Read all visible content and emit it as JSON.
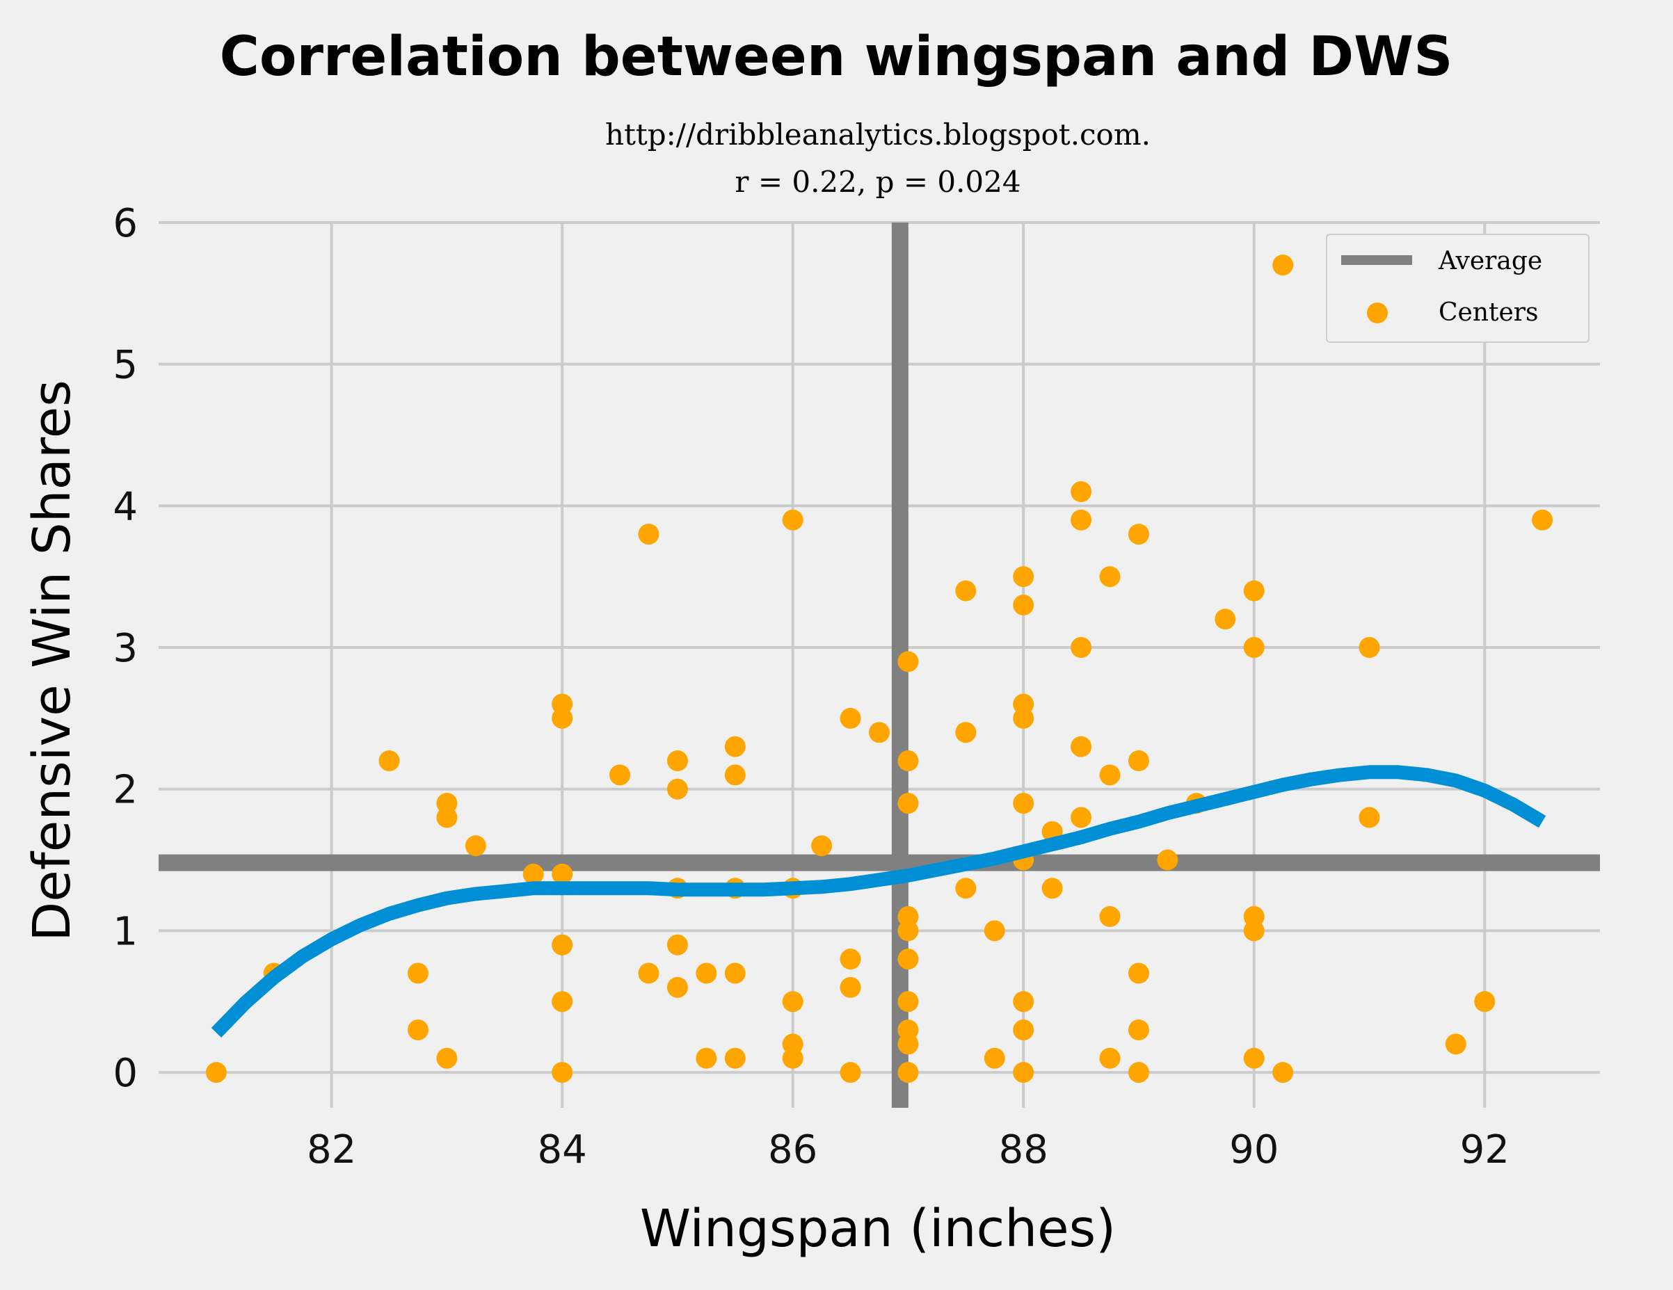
{
  "chart_data": {
    "type": "scatter",
    "title": "Correlation between wingspan and DWS",
    "subtitle_lines": [
      "http://dribbleanalytics.blogspot.com.",
      "r = 0.22, p = 0.024"
    ],
    "xlabel": "Wingspan (inches)",
    "ylabel": "Defensive Win Shares",
    "xlim": [
      80.5,
      93.0
    ],
    "ylim": [
      -0.25,
      6.0
    ],
    "xticks": [
      82,
      84,
      86,
      88,
      90,
      92
    ],
    "yticks": [
      0,
      1,
      2,
      3,
      4,
      5,
      6
    ],
    "grid": true,
    "legend": {
      "position": "top-right",
      "entries": [
        "Average",
        "Centers"
      ]
    },
    "colors": {
      "points": "#ffa500",
      "fit": "#008fd5",
      "average": "#808080",
      "grid": "#cbcbcb",
      "background": "#f0f0f0"
    },
    "average": {
      "x": 86.93,
      "y": 1.48,
      "name": "Average"
    },
    "series": [
      {
        "name": "Centers",
        "points": [
          [
            81.0,
            0.0
          ],
          [
            81.5,
            0.7
          ],
          [
            82.5,
            2.2
          ],
          [
            82.75,
            0.7
          ],
          [
            82.75,
            0.3
          ],
          [
            83.0,
            1.9
          ],
          [
            83.0,
            1.8
          ],
          [
            83.0,
            0.1
          ],
          [
            83.25,
            1.6
          ],
          [
            83.75,
            1.4
          ],
          [
            84.0,
            2.6
          ],
          [
            84.0,
            2.5
          ],
          [
            84.0,
            1.4
          ],
          [
            84.0,
            0.9
          ],
          [
            84.0,
            0.5
          ],
          [
            84.0,
            0.0
          ],
          [
            84.5,
            2.1
          ],
          [
            84.75,
            3.8
          ],
          [
            84.75,
            0.7
          ],
          [
            85.0,
            2.2
          ],
          [
            85.0,
            2.0
          ],
          [
            85.0,
            1.3
          ],
          [
            85.0,
            0.9
          ],
          [
            85.0,
            0.6
          ],
          [
            85.25,
            0.7
          ],
          [
            85.25,
            0.1
          ],
          [
            85.5,
            2.3
          ],
          [
            85.5,
            2.1
          ],
          [
            85.5,
            1.3
          ],
          [
            85.5,
            0.7
          ],
          [
            85.5,
            0.1
          ],
          [
            86.0,
            3.9
          ],
          [
            86.0,
            1.3
          ],
          [
            86.0,
            0.5
          ],
          [
            86.0,
            0.2
          ],
          [
            86.0,
            0.1
          ],
          [
            86.25,
            1.6
          ],
          [
            86.5,
            2.5
          ],
          [
            86.5,
            0.8
          ],
          [
            86.5,
            0.6
          ],
          [
            86.5,
            0.0
          ],
          [
            86.75,
            2.4
          ],
          [
            87.0,
            2.9
          ],
          [
            87.0,
            2.2
          ],
          [
            87.0,
            1.9
          ],
          [
            87.0,
            1.1
          ],
          [
            87.0,
            1.0
          ],
          [
            87.0,
            0.8
          ],
          [
            87.0,
            0.5
          ],
          [
            87.0,
            0.3
          ],
          [
            87.0,
            0.2
          ],
          [
            87.0,
            0.0
          ],
          [
            87.5,
            3.4
          ],
          [
            87.5,
            2.4
          ],
          [
            87.5,
            1.3
          ],
          [
            87.75,
            1.0
          ],
          [
            87.75,
            0.1
          ],
          [
            88.0,
            3.5
          ],
          [
            88.0,
            3.3
          ],
          [
            88.0,
            2.6
          ],
          [
            88.0,
            2.5
          ],
          [
            88.0,
            1.9
          ],
          [
            88.0,
            1.5
          ],
          [
            88.0,
            0.5
          ],
          [
            88.0,
            0.3
          ],
          [
            88.0,
            0.0
          ],
          [
            88.25,
            1.7
          ],
          [
            88.25,
            1.3
          ],
          [
            88.5,
            4.1
          ],
          [
            88.5,
            3.9
          ],
          [
            88.5,
            3.0
          ],
          [
            88.5,
            2.3
          ],
          [
            88.5,
            1.8
          ],
          [
            88.75,
            3.5
          ],
          [
            88.75,
            2.1
          ],
          [
            88.75,
            1.1
          ],
          [
            88.75,
            0.1
          ],
          [
            89.0,
            3.8
          ],
          [
            89.0,
            2.2
          ],
          [
            89.0,
            0.7
          ],
          [
            89.0,
            0.3
          ],
          [
            89.0,
            0.0
          ],
          [
            89.25,
            1.5
          ],
          [
            89.5,
            1.9
          ],
          [
            89.75,
            3.2
          ],
          [
            90.0,
            3.4
          ],
          [
            90.0,
            3.0
          ],
          [
            90.0,
            1.1
          ],
          [
            90.0,
            1.0
          ],
          [
            90.0,
            0.1
          ],
          [
            90.25,
            5.7
          ],
          [
            90.25,
            0.0
          ],
          [
            91.0,
            3.0
          ],
          [
            91.0,
            1.8
          ],
          [
            91.75,
            0.2
          ],
          [
            92.0,
            0.5
          ],
          [
            92.5,
            3.9
          ]
        ]
      }
    ],
    "fit_curve": {
      "x": [
        81.0,
        81.25,
        81.5,
        81.75,
        82.0,
        82.25,
        82.5,
        82.75,
        83.0,
        83.25,
        83.5,
        83.75,
        84.0,
        84.25,
        84.5,
        84.75,
        85.0,
        85.25,
        85.5,
        85.75,
        86.0,
        86.25,
        86.5,
        86.75,
        87.0,
        87.25,
        87.5,
        87.75,
        88.0,
        88.25,
        88.5,
        88.75,
        89.0,
        89.25,
        89.5,
        89.75,
        90.0,
        90.25,
        90.5,
        90.75,
        91.0,
        91.25,
        91.5,
        91.75,
        92.0,
        92.25,
        92.5
      ],
      "y": [
        0.28,
        0.49,
        0.67,
        0.82,
        0.94,
        1.04,
        1.12,
        1.18,
        1.23,
        1.26,
        1.28,
        1.3,
        1.3,
        1.3,
        1.3,
        1.3,
        1.29,
        1.29,
        1.29,
        1.29,
        1.3,
        1.31,
        1.33,
        1.36,
        1.39,
        1.43,
        1.47,
        1.51,
        1.56,
        1.61,
        1.66,
        1.72,
        1.77,
        1.83,
        1.88,
        1.93,
        1.98,
        2.03,
        2.07,
        2.1,
        2.12,
        2.12,
        2.1,
        2.06,
        1.99,
        1.89,
        1.77
      ]
    }
  }
}
